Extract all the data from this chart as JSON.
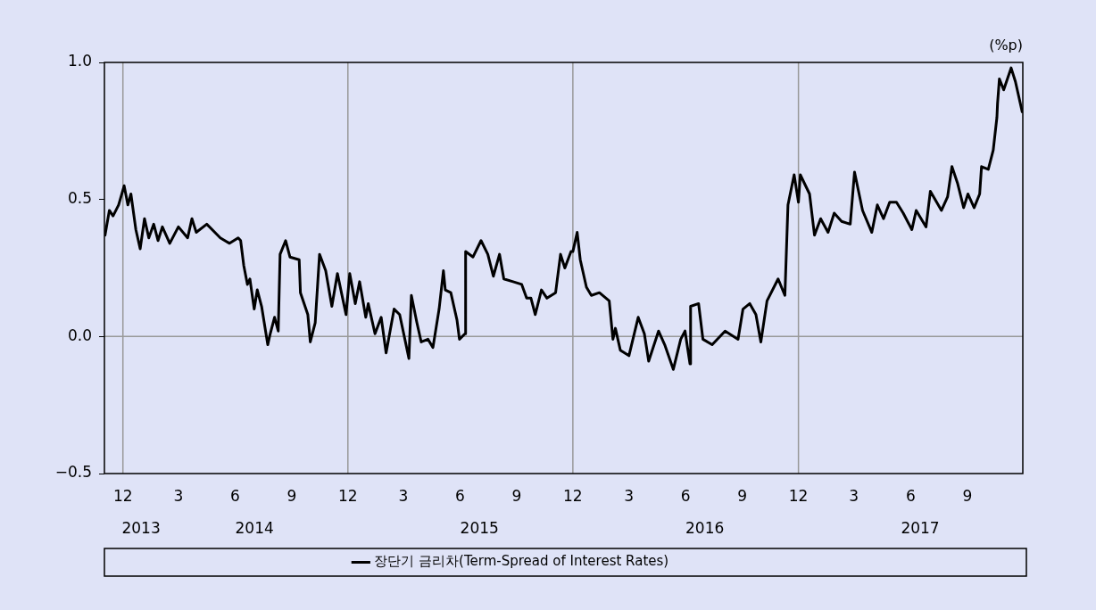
{
  "chart_data": {
    "type": "line",
    "ylabel": "(%p)",
    "legend": "bottom",
    "xlim": [
      "2013-11-01",
      "2017-11-30"
    ],
    "ylim": [
      -0.5,
      1.0
    ],
    "yticks": [
      {
        "value": -0.5,
        "label": "−0.5"
      },
      {
        "value": 0,
        "label": "0.0"
      },
      {
        "value": 0.5,
        "label": "0.5"
      },
      {
        "value": 1,
        "label": "1.0"
      }
    ],
    "xticks": [
      {
        "value": "2013-12-01",
        "label": "12"
      },
      {
        "value": "2014-03-01",
        "label": "3"
      },
      {
        "value": "2014-06-01",
        "label": "6"
      },
      {
        "value": "2014-09-01",
        "label": "9"
      },
      {
        "value": "2014-12-01",
        "label": "12"
      },
      {
        "value": "2015-03-01",
        "label": "3"
      },
      {
        "value": "2015-06-01",
        "label": "6"
      },
      {
        "value": "2015-09-01",
        "label": "9"
      },
      {
        "value": "2015-12-01",
        "label": "12"
      },
      {
        "value": "2016-03-01",
        "label": "3"
      },
      {
        "value": "2016-06-01",
        "label": "6"
      },
      {
        "value": "2016-09-01",
        "label": "9"
      },
      {
        "value": "2016-12-01",
        "label": "12"
      },
      {
        "value": "2017-03-01",
        "label": "3"
      },
      {
        "value": "2017-06-01",
        "label": "6"
      },
      {
        "value": "2017-09-01",
        "label": "9"
      }
    ],
    "annotations": [
      "2013",
      "2014",
      "2015",
      "2016",
      "2017"
    ],
    "ref_lines": [
      {
        "axis": "x",
        "value": "2013-12-01",
        "color": "#999999"
      },
      {
        "axis": "x",
        "value": "2014-12-01",
        "color": "#999999"
      },
      {
        "axis": "x",
        "value": "2015-12-01",
        "color": "#999999"
      },
      {
        "axis": "x",
        "value": "2016-12-01",
        "color": "#999999"
      },
      {
        "axis": "y",
        "value": 0,
        "color": "#999999"
      }
    ],
    "series": [
      {
        "name": "장단기 금리차(Term-Spread of Interest Rates)",
        "color": "#000000",
        "x": [
          "2013-11-02",
          "2013-11-09",
          "2013-11-15",
          "2013-11-24",
          "2013-12-03",
          "2013-12-09",
          "2013-12-14",
          "2013-12-22",
          "2013-12-29",
          "2014-01-05",
          "2014-01-12",
          "2014-01-20",
          "2014-01-27",
          "2014-02-03",
          "2014-02-15",
          "2014-03-01",
          "2014-03-16",
          "2014-03-23",
          "2014-03-30",
          "2014-04-16",
          "2014-05-08",
          "2014-05-23",
          "2014-06-06",
          "2014-06-10",
          "2014-06-15",
          "2014-06-21",
          "2014-06-25",
          "2014-07-02",
          "2014-07-07",
          "2014-07-14",
          "2014-07-24",
          "2014-07-28",
          "2014-08-04",
          "2014-08-10",
          "2014-08-13",
          "2014-08-22",
          "2014-08-29",
          "2014-09-13",
          "2014-09-15",
          "2014-09-27",
          "2014-10-01",
          "2014-10-09",
          "2014-10-16",
          "2014-10-26",
          "2014-11-05",
          "2014-11-14",
          "2014-11-28",
          "2014-12-04",
          "2014-12-13",
          "2014-12-20",
          "2014-12-30",
          "2015-01-03",
          "2015-01-14",
          "2015-01-24",
          "2015-02-01",
          "2015-02-14",
          "2015-02-23",
          "2015-03-10",
          "2015-03-14",
          "2015-03-23",
          "2015-03-30",
          "2015-04-10",
          "2015-04-18",
          "2015-04-28",
          "2015-05-05",
          "2015-05-08",
          "2015-05-17",
          "2015-05-27",
          "2015-05-31",
          "2015-06-09",
          "2015-06-10",
          "2015-06-22",
          "2015-07-05",
          "2015-07-16",
          "2015-07-25",
          "2015-08-04",
          "2015-08-11",
          "2015-08-26",
          "2015-09-09",
          "2015-09-17",
          "2015-09-24",
          "2015-10-01",
          "2015-10-11",
          "2015-10-20",
          "2015-11-03",
          "2015-11-11",
          "2015-11-18",
          "2015-11-28",
          "2015-12-01",
          "2015-12-08",
          "2015-12-13",
          "2015-12-23",
          "2015-12-31",
          "2016-01-13",
          "2016-01-29",
          "2016-02-04",
          "2016-02-08",
          "2016-02-16",
          "2016-03-01",
          "2016-03-16",
          "2016-03-26",
          "2016-04-02",
          "2016-04-18",
          "2016-04-28",
          "2016-05-12",
          "2016-05-24",
          "2016-05-31",
          "2016-06-08",
          "2016-06-09",
          "2016-06-22",
          "2016-06-29",
          "2016-07-14",
          "2016-08-04",
          "2016-08-25",
          "2016-09-02",
          "2016-09-13",
          "2016-09-23",
          "2016-10-01",
          "2016-10-11",
          "2016-10-29",
          "2016-11-09",
          "2016-11-14",
          "2016-11-24",
          "2016-12-01",
          "2016-12-04",
          "2016-12-19",
          "2016-12-27",
          "2017-01-06",
          "2017-01-18",
          "2017-01-28",
          "2017-02-09",
          "2017-02-23",
          "2017-03-02",
          "2017-03-15",
          "2017-03-30",
          "2017-04-08",
          "2017-04-18",
          "2017-04-28",
          "2017-05-09",
          "2017-05-20",
          "2017-06-03",
          "2017-06-10",
          "2017-06-26",
          "2017-07-03",
          "2017-07-21",
          "2017-07-31",
          "2017-08-07",
          "2017-08-16",
          "2017-08-26",
          "2017-09-02",
          "2017-09-12",
          "2017-09-21",
          "2017-09-24",
          "2017-10-05",
          "2017-10-13",
          "2017-10-19",
          "2017-10-20",
          "2017-10-23",
          "2017-10-30",
          "2017-11-11",
          "2017-11-18",
          "2017-11-29"
        ],
        "values": [
          0.37,
          0.46,
          0.44,
          0.48,
          0.55,
          0.48,
          0.52,
          0.39,
          0.32,
          0.43,
          0.36,
          0.41,
          0.35,
          0.4,
          0.34,
          0.4,
          0.36,
          0.43,
          0.38,
          0.41,
          0.36,
          0.34,
          0.36,
          0.35,
          0.26,
          0.19,
          0.21,
          0.1,
          0.17,
          0.11,
          -0.03,
          0.01,
          0.07,
          0.02,
          0.3,
          0.35,
          0.29,
          0.28,
          0.16,
          0.08,
          -0.02,
          0.05,
          0.3,
          0.24,
          0.11,
          0.23,
          0.08,
          0.23,
          0.12,
          0.2,
          0.07,
          0.12,
          0.01,
          0.07,
          -0.06,
          0.1,
          0.08,
          -0.08,
          0.15,
          0.05,
          -0.02,
          -0.01,
          -0.04,
          0.1,
          0.24,
          0.17,
          0.16,
          0.06,
          -0.01,
          0.01,
          0.31,
          0.29,
          0.35,
          0.3,
          0.22,
          0.3,
          0.21,
          0.2,
          0.19,
          0.14,
          0.14,
          0.08,
          0.17,
          0.14,
          0.16,
          0.3,
          0.25,
          0.31,
          0.31,
          0.38,
          0.28,
          0.18,
          0.15,
          0.16,
          0.13,
          -0.01,
          0.03,
          -0.05,
          -0.07,
          0.07,
          0.01,
          -0.09,
          0.02,
          -0.03,
          -0.12,
          -0.01,
          0.02,
          -0.1,
          0.11,
          0.12,
          -0.01,
          -0.03,
          0.02,
          -0.01,
          0.1,
          0.12,
          0.08,
          -0.02,
          0.13,
          0.21,
          0.15,
          0.48,
          0.59,
          0.49,
          0.59,
          0.52,
          0.37,
          0.43,
          0.38,
          0.45,
          0.42,
          0.41,
          0.6,
          0.46,
          0.38,
          0.48,
          0.43,
          0.49,
          0.49,
          0.45,
          0.39,
          0.46,
          0.4,
          0.53,
          0.46,
          0.51,
          0.62,
          0.56,
          0.47,
          0.52,
          0.47,
          0.52,
          0.62,
          0.61,
          0.68,
          0.8,
          0.85,
          0.94,
          0.9,
          0.98,
          0.93,
          0.82
        ]
      }
    ]
  }
}
